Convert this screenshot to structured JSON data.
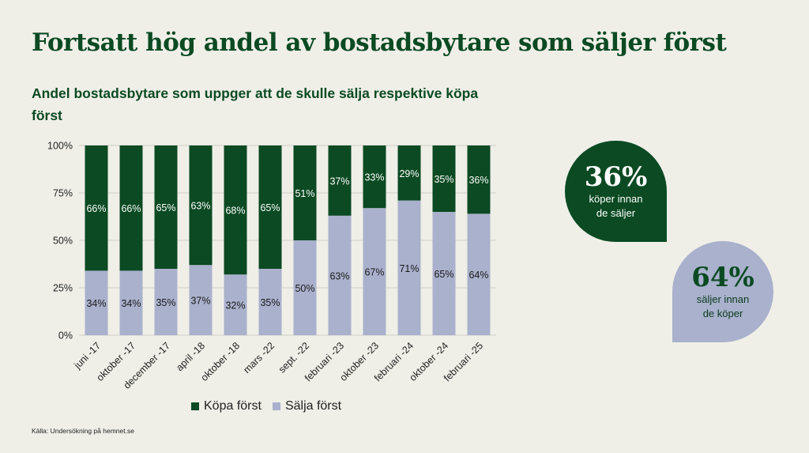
{
  "header": {
    "title": "Fortsatt hög andel av bostadsbytare som säljer först",
    "subtitle": "Andel bostadsbytare som uppger att de skulle sälja respektive köpa först"
  },
  "colors": {
    "kopa": "#0b4a22",
    "salja": "#a9b1cc",
    "background": "#efefe8"
  },
  "chart_data": {
    "type": "bar",
    "stacked": true,
    "categories": [
      "juni -17",
      "oktober -17",
      "december -17",
      "april -18",
      "oktober -18",
      "mars -22",
      "sept. -22",
      "februari -23",
      "oktober -23",
      "februari -24",
      "oktober -24",
      "februari -25"
    ],
    "series": [
      {
        "name": "Sälja först",
        "values": [
          34,
          34,
          35,
          37,
          32,
          35,
          50,
          63,
          67,
          71,
          65,
          64
        ],
        "color": "#a9b1cc"
      },
      {
        "name": "Köpa först",
        "values": [
          66,
          66,
          65,
          63,
          68,
          65,
          51,
          37,
          33,
          29,
          35,
          36
        ],
        "color": "#0b4a22"
      }
    ],
    "y_ticks": [
      "0%",
      "25%",
      "50%",
      "75%",
      "100%"
    ],
    "ylim": [
      0,
      100
    ],
    "grid": true,
    "legend_position": "bottom"
  },
  "legend": {
    "kopa_label": "Köpa först",
    "salja_label": "Sälja först"
  },
  "callouts": {
    "kopa": {
      "value": "36%",
      "text_line1": "köper innan",
      "text_line2": "de säljer"
    },
    "salja": {
      "value": "64%",
      "text_line1": "säljer innan",
      "text_line2": "de köper"
    }
  },
  "source": "Källa: Undersökning på hemnet.se"
}
